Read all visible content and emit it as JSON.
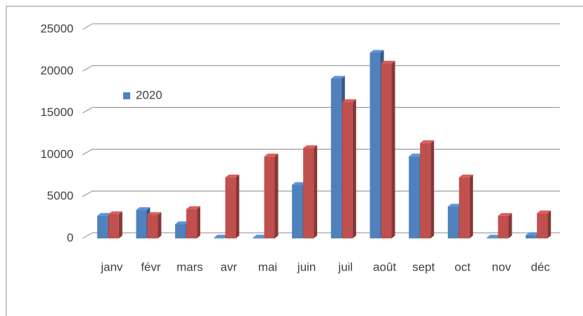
{
  "chart_data": {
    "type": "bar",
    "categories": [
      "janv",
      "févr",
      "mars",
      "avr",
      "mai",
      "juin",
      "juil",
      "août",
      "sept",
      "oct",
      "nov",
      "déc"
    ],
    "series": [
      {
        "name": "2020",
        "color": "#4f81bd",
        "values": [
          2700,
          3400,
          1700,
          100,
          100,
          6400,
          19100,
          22200,
          9800,
          3800,
          100,
          400
        ]
      },
      {
        "color": "#c0504d",
        "values": [
          2900,
          2800,
          3500,
          7300,
          9800,
          10800,
          16300,
          20900,
          11400,
          7300,
          2700,
          3000
        ]
      }
    ],
    "ylim": [
      0,
      25000
    ],
    "yticks": [
      0,
      5000,
      10000,
      15000,
      20000,
      25000
    ],
    "grid": true,
    "legend": "left"
  }
}
